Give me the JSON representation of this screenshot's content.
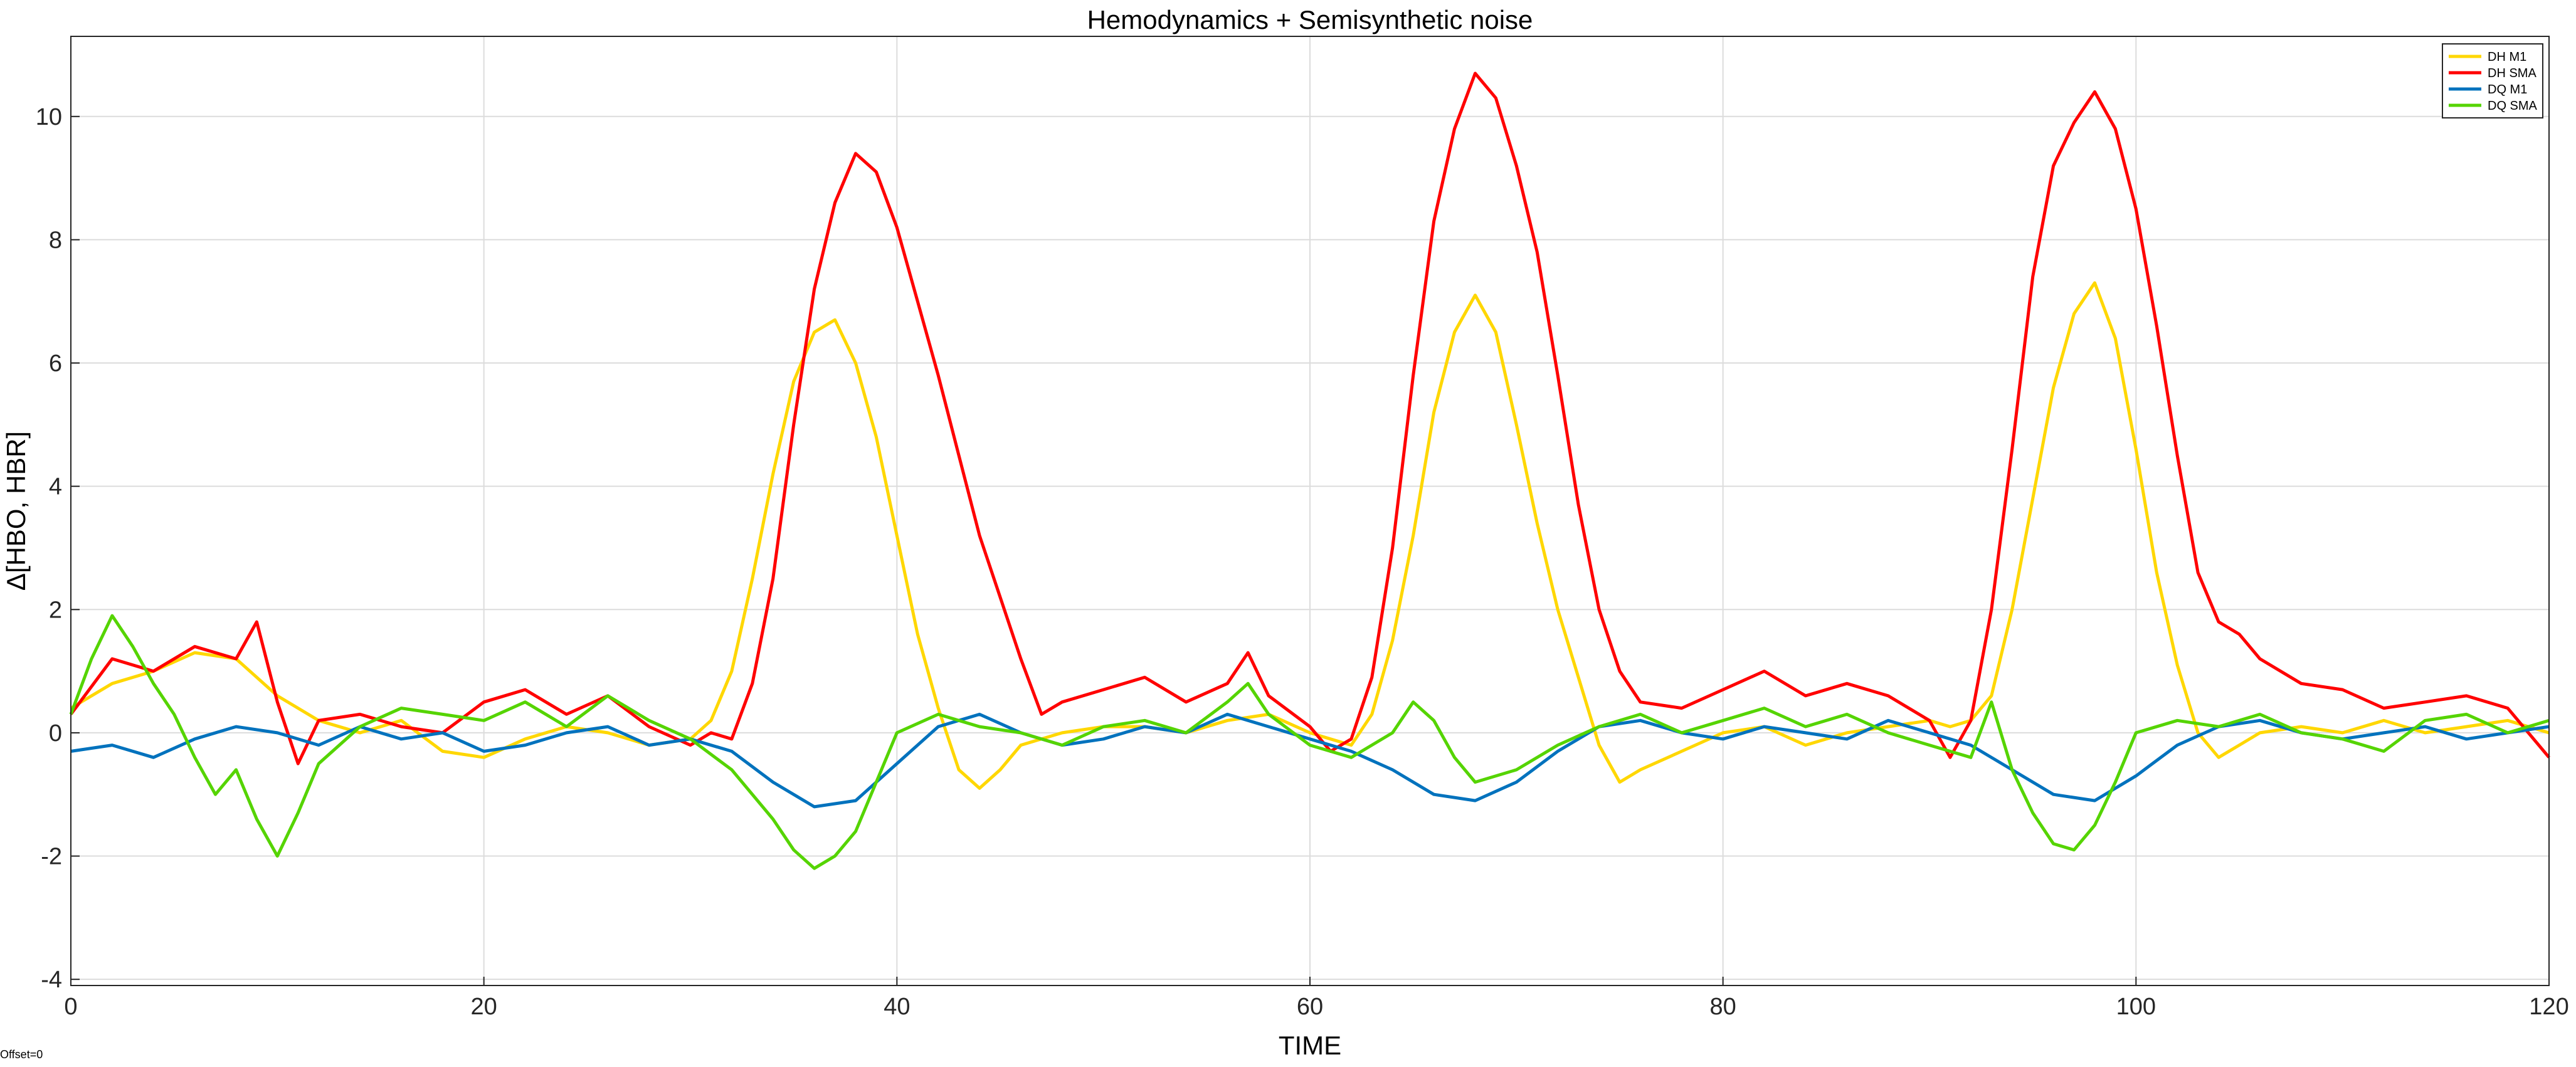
{
  "chart_data": {
    "type": "line",
    "title": "Hemodynamics + Semisynthetic noise",
    "xlabel": "TIME",
    "ylabel": "Δ[HBO, HBR]",
    "xlim": [
      0,
      120
    ],
    "ylim": [
      -4.1,
      11.3
    ],
    "xticks": [
      0,
      20,
      40,
      60,
      80,
      100,
      120
    ],
    "yticks": [
      -4,
      -2,
      0,
      2,
      4,
      6,
      8,
      10
    ],
    "grid": true,
    "legend_position": "top-right",
    "series": [
      {
        "name": "DH M1",
        "color": "#FFD700",
        "x": [
          0,
          2,
          4,
          6,
          8,
          10,
          12,
          14,
          16,
          18,
          20,
          22,
          24,
          26,
          28,
          30,
          31,
          32,
          33,
          34,
          35,
          36,
          37,
          38,
          39,
          40,
          41,
          42,
          43,
          44,
          45,
          46,
          48,
          50,
          52,
          54,
          56,
          58,
          60,
          61,
          62,
          63,
          64,
          65,
          66,
          67,
          68,
          69,
          70,
          71,
          72,
          73,
          74,
          75,
          76,
          78,
          80,
          82,
          84,
          86,
          88,
          90,
          91,
          92,
          93,
          94,
          95,
          96,
          97,
          98,
          99,
          100,
          101,
          102,
          103,
          104,
          105,
          106,
          108,
          110,
          112,
          114,
          116,
          118,
          120
        ],
        "y": [
          0.4,
          0.8,
          1.0,
          1.3,
          1.2,
          0.6,
          0.2,
          0.0,
          0.2,
          -0.3,
          -0.4,
          -0.1,
          0.1,
          0.0,
          -0.2,
          -0.1,
          0.2,
          1.0,
          2.5,
          4.2,
          5.7,
          6.5,
          6.7,
          6.0,
          4.8,
          3.2,
          1.6,
          0.4,
          -0.6,
          -0.9,
          -0.6,
          -0.2,
          0.0,
          0.1,
          0.1,
          0.0,
          0.2,
          0.3,
          0.0,
          -0.1,
          -0.2,
          0.3,
          1.5,
          3.2,
          5.2,
          6.5,
          7.1,
          6.5,
          5.0,
          3.4,
          2.0,
          0.9,
          -0.2,
          -0.8,
          -0.6,
          -0.3,
          0.0,
          0.1,
          -0.2,
          0.0,
          0.1,
          0.2,
          0.1,
          0.2,
          0.6,
          2.0,
          3.8,
          5.6,
          6.8,
          7.3,
          6.4,
          4.6,
          2.6,
          1.1,
          0.0,
          -0.4,
          -0.2,
          0.0,
          0.1,
          0.0,
          0.2,
          0.0,
          0.1,
          0.2,
          0.0
        ]
      },
      {
        "name": "DH SMA",
        "color": "#FF0000",
        "x": [
          0,
          2,
          4,
          6,
          8,
          9,
          10,
          11,
          12,
          14,
          16,
          18,
          20,
          22,
          24,
          26,
          28,
          30,
          31,
          32,
          33,
          34,
          35,
          36,
          37,
          38,
          39,
          40,
          41,
          42,
          43,
          44,
          45,
          46,
          47,
          48,
          50,
          52,
          54,
          56,
          57,
          58,
          60,
          61,
          62,
          63,
          64,
          65,
          66,
          67,
          68,
          69,
          70,
          71,
          72,
          73,
          74,
          75,
          76,
          78,
          80,
          82,
          84,
          86,
          88,
          90,
          91,
          92,
          93,
          94,
          95,
          96,
          97,
          98,
          99,
          100,
          101,
          102,
          103,
          104,
          105,
          106,
          108,
          110,
          112,
          114,
          116,
          118,
          120
        ],
        "y": [
          0.3,
          1.2,
          1.0,
          1.4,
          1.2,
          1.8,
          0.5,
          -0.5,
          0.2,
          0.3,
          0.1,
          0.0,
          0.5,
          0.7,
          0.3,
          0.6,
          0.1,
          -0.2,
          0.0,
          -0.1,
          0.8,
          2.5,
          5.0,
          7.2,
          8.6,
          9.4,
          9.1,
          8.2,
          7.0,
          5.8,
          4.5,
          3.2,
          2.2,
          1.2,
          0.3,
          0.5,
          0.7,
          0.9,
          0.5,
          0.8,
          1.3,
          0.6,
          0.1,
          -0.3,
          -0.1,
          0.9,
          3.0,
          5.8,
          8.3,
          9.8,
          10.7,
          10.3,
          9.2,
          7.8,
          5.8,
          3.7,
          2.0,
          1.0,
          0.5,
          0.4,
          0.7,
          1.0,
          0.6,
          0.8,
          0.6,
          0.2,
          -0.4,
          0.2,
          2.0,
          4.6,
          7.4,
          9.2,
          9.9,
          10.4,
          9.8,
          8.5,
          6.6,
          4.5,
          2.6,
          1.8,
          1.6,
          1.2,
          0.8,
          0.7,
          0.4,
          0.5,
          0.6,
          0.4,
          -0.4
        ]
      },
      {
        "name": "DQ M1",
        "color": "#0072BD",
        "x": [
          0,
          2,
          4,
          6,
          8,
          10,
          12,
          14,
          16,
          18,
          20,
          22,
          24,
          26,
          28,
          30,
          32,
          34,
          36,
          38,
          40,
          42,
          44,
          46,
          48,
          50,
          52,
          54,
          56,
          58,
          60,
          62,
          64,
          66,
          68,
          70,
          72,
          74,
          76,
          78,
          80,
          82,
          84,
          86,
          88,
          90,
          92,
          94,
          96,
          98,
          100,
          102,
          104,
          106,
          108,
          110,
          112,
          114,
          116,
          118,
          120
        ],
        "y": [
          -0.3,
          -0.2,
          -0.4,
          -0.1,
          0.1,
          0.0,
          -0.2,
          0.1,
          -0.1,
          0.0,
          -0.3,
          -0.2,
          0.0,
          0.1,
          -0.2,
          -0.1,
          -0.3,
          -0.8,
          -1.2,
          -1.1,
          -0.5,
          0.1,
          0.3,
          0.0,
          -0.2,
          -0.1,
          0.1,
          0.0,
          0.3,
          0.1,
          -0.1,
          -0.3,
          -0.6,
          -1.0,
          -1.1,
          -0.8,
          -0.3,
          0.1,
          0.2,
          0.0,
          -0.1,
          0.1,
          0.0,
          -0.1,
          0.2,
          0.0,
          -0.2,
          -0.6,
          -1.0,
          -1.1,
          -0.7,
          -0.2,
          0.1,
          0.2,
          0.0,
          -0.1,
          0.0,
          0.1,
          -0.1,
          0.0,
          0.1
        ]
      },
      {
        "name": "DQ SMA",
        "color": "#55D400",
        "x": [
          0,
          1,
          2,
          3,
          4,
          5,
          6,
          7,
          8,
          9,
          10,
          11,
          12,
          14,
          16,
          18,
          20,
          22,
          24,
          26,
          28,
          30,
          32,
          34,
          35,
          36,
          37,
          38,
          39,
          40,
          42,
          44,
          46,
          48,
          50,
          52,
          54,
          56,
          57,
          58,
          60,
          62,
          64,
          65,
          66,
          67,
          68,
          70,
          72,
          74,
          76,
          78,
          80,
          82,
          84,
          86,
          88,
          90,
          92,
          93,
          94,
          95,
          96,
          97,
          98,
          99,
          100,
          102,
          104,
          106,
          108,
          110,
          112,
          114,
          116,
          118,
          120
        ],
        "y": [
          0.3,
          1.2,
          1.9,
          1.4,
          0.8,
          0.3,
          -0.4,
          -1.0,
          -0.6,
          -1.4,
          -2.0,
          -1.3,
          -0.5,
          0.1,
          0.4,
          0.3,
          0.2,
          0.5,
          0.1,
          0.6,
          0.2,
          -0.1,
          -0.6,
          -1.4,
          -1.9,
          -2.2,
          -2.0,
          -1.6,
          -0.8,
          0.0,
          0.3,
          0.1,
          0.0,
          -0.2,
          0.1,
          0.2,
          0.0,
          0.5,
          0.8,
          0.3,
          -0.2,
          -0.4,
          0.0,
          0.5,
          0.2,
          -0.4,
          -0.8,
          -0.6,
          -0.2,
          0.1,
          0.3,
          0.0,
          0.2,
          0.4,
          0.1,
          0.3,
          0.0,
          -0.2,
          -0.4,
          0.5,
          -0.6,
          -1.3,
          -1.8,
          -1.9,
          -1.5,
          -0.8,
          0.0,
          0.2,
          0.1,
          0.3,
          0.0,
          -0.1,
          -0.3,
          0.2,
          0.3,
          0.0,
          0.2
        ]
      }
    ]
  },
  "footer": {
    "offset_label": "Offset=0"
  }
}
